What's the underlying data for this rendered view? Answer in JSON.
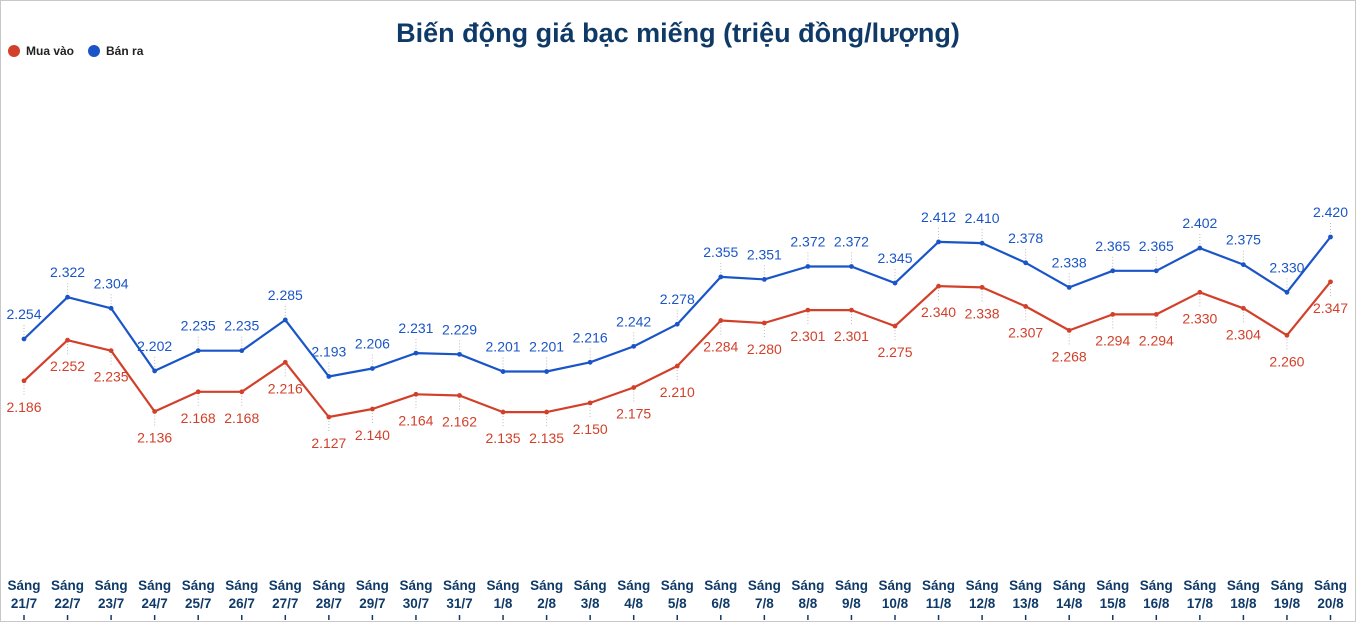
{
  "chart_data": {
    "type": "line",
    "title": "Biến động giá bạc miếng (triệu đồng/lượng)",
    "x": [
      [
        "Sáng",
        "21/7"
      ],
      [
        "Sáng",
        "22/7"
      ],
      [
        "Sáng",
        "23/7"
      ],
      [
        "Sáng",
        "24/7"
      ],
      [
        "Sáng",
        "25/7"
      ],
      [
        "Sáng",
        "26/7"
      ],
      [
        "Sáng",
        "27/7"
      ],
      [
        "Sáng",
        "28/7"
      ],
      [
        "Sáng",
        "29/7"
      ],
      [
        "Sáng",
        "30/7"
      ],
      [
        "Sáng",
        "31/7"
      ],
      [
        "Sáng",
        "1/8"
      ],
      [
        "Sáng",
        "2/8"
      ],
      [
        "Sáng",
        "3/8"
      ],
      [
        "Sáng",
        "4/8"
      ],
      [
        "Sáng",
        "5/8"
      ],
      [
        "Sáng",
        "6/8"
      ],
      [
        "Sáng",
        "7/8"
      ],
      [
        "Sáng",
        "8/8"
      ],
      [
        "Sáng",
        "9/8"
      ],
      [
        "Sáng",
        "10/8"
      ],
      [
        "Sáng",
        "11/8"
      ],
      [
        "Sáng",
        "12/8"
      ],
      [
        "Sáng",
        "13/8"
      ],
      [
        "Sáng",
        "14/8"
      ],
      [
        "Sáng",
        "15/8"
      ],
      [
        "Sáng",
        "16/8"
      ],
      [
        "Sáng",
        "17/8"
      ],
      [
        "Sáng",
        "18/8"
      ],
      [
        "Sáng",
        "19/8"
      ],
      [
        "Sáng",
        "20/8"
      ]
    ],
    "series": [
      {
        "name": "Mua vào",
        "color": "#d2402a",
        "values": [
          2.186,
          2.252,
          2.235,
          2.136,
          2.168,
          2.168,
          2.216,
          2.127,
          2.14,
          2.164,
          2.162,
          2.135,
          2.135,
          2.15,
          2.175,
          2.21,
          2.284,
          2.28,
          2.301,
          2.301,
          2.275,
          2.34,
          2.338,
          2.307,
          2.268,
          2.294,
          2.294,
          2.33,
          2.304,
          2.26,
          2.347
        ],
        "labels": [
          "2.186",
          "2.252",
          "2.235",
          "2.136",
          "2.168",
          "2.168",
          "2.216",
          "2.127",
          "2.140",
          "2.164",
          "2.162",
          "2.135",
          "2.135",
          "2.150",
          "2.175",
          "2.210",
          "2.284",
          "2.280",
          "2.301",
          "2.301",
          "2.275",
          "2.340",
          "2.338",
          "2.307",
          "2.268",
          "2.294",
          "2.294",
          "2.330",
          "2.304",
          "2.260",
          "2.347"
        ]
      },
      {
        "name": "Bán ra",
        "color": "#1a55c8",
        "values": [
          2.254,
          2.322,
          2.304,
          2.202,
          2.235,
          2.235,
          2.285,
          2.193,
          2.206,
          2.231,
          2.229,
          2.201,
          2.201,
          2.216,
          2.242,
          2.278,
          2.355,
          2.351,
          2.372,
          2.372,
          2.345,
          2.412,
          2.41,
          2.378,
          2.338,
          2.365,
          2.365,
          2.402,
          2.375,
          2.33,
          2.42
        ],
        "labels": [
          "2.254",
          "2.322",
          "2.304",
          "2.202",
          "2.235",
          "2.235",
          "2.285",
          "2.193",
          "2.206",
          "2.231",
          "2.229",
          "2.201",
          "2.201",
          "2.216",
          "2.242",
          "2.278",
          "2.355",
          "2.351",
          "2.372",
          "2.372",
          "2.345",
          "2.412",
          "2.410",
          "2.378",
          "2.338",
          "2.365",
          "2.365",
          "2.402",
          "2.375",
          "2.330",
          "2.420"
        ]
      }
    ],
    "legend": "top-left",
    "grid": false
  }
}
